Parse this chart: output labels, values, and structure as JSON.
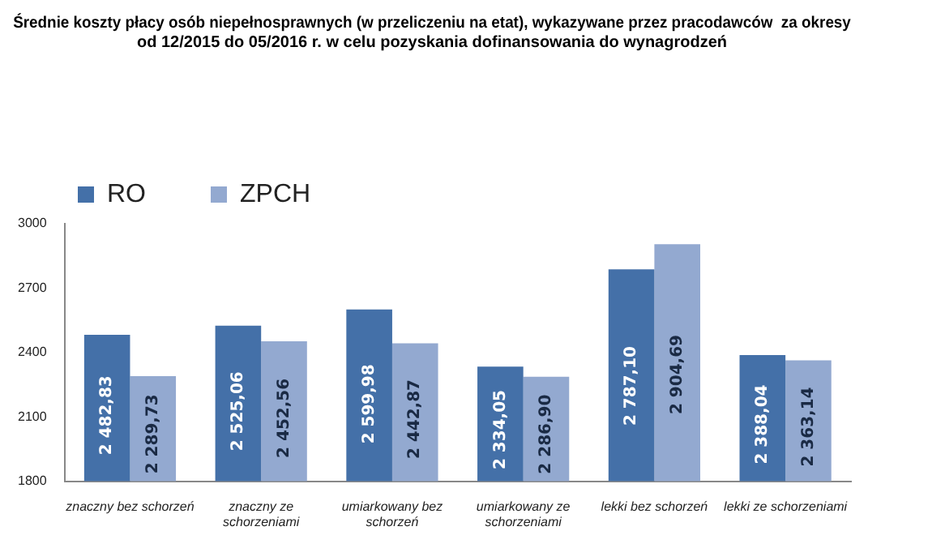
{
  "chart_data": {
    "type": "bar",
    "title": "Średnie koszty płacy osób niepełnosprawnych (w przeliczeniu na etat), wykazywane przez pracodawców  za okresy od 12/2015 do 05/2016 r. w celu pozyskania dofinansowania do wynagrodzeń",
    "categories": [
      "znaczny bez schorzeń",
      "znaczny ze schorzeniami",
      "umiarkowany bez schorzeń",
      "umiarkowany ze schorzeniami",
      "lekki bez schorzeń",
      "lekki ze schorzeniami"
    ],
    "series": [
      {
        "name": "RO",
        "color": "#4470a8",
        "values": [
          2482.83,
          2525.06,
          2599.98,
          2334.05,
          2787.1,
          2388.04
        ],
        "value_labels": [
          "2 482,83",
          "2 525,06",
          "2 599,98",
          "2 334,05",
          "2 787,10",
          "2 388,04"
        ]
      },
      {
        "name": "ZPCH",
        "color": "#93a9d0",
        "values": [
          2289.73,
          2452.56,
          2442.87,
          2286.9,
          2904.69,
          2363.14
        ],
        "value_labels": [
          "2 289,73",
          "2 452,56",
          "2 442,87",
          "2 286,90",
          "2 904,69",
          "2 363,14"
        ]
      }
    ],
    "ylim": [
      1800,
      3000
    ],
    "yticks": [
      1800,
      2100,
      2400,
      2700,
      3000
    ],
    "grid": false,
    "legend": "top left"
  }
}
